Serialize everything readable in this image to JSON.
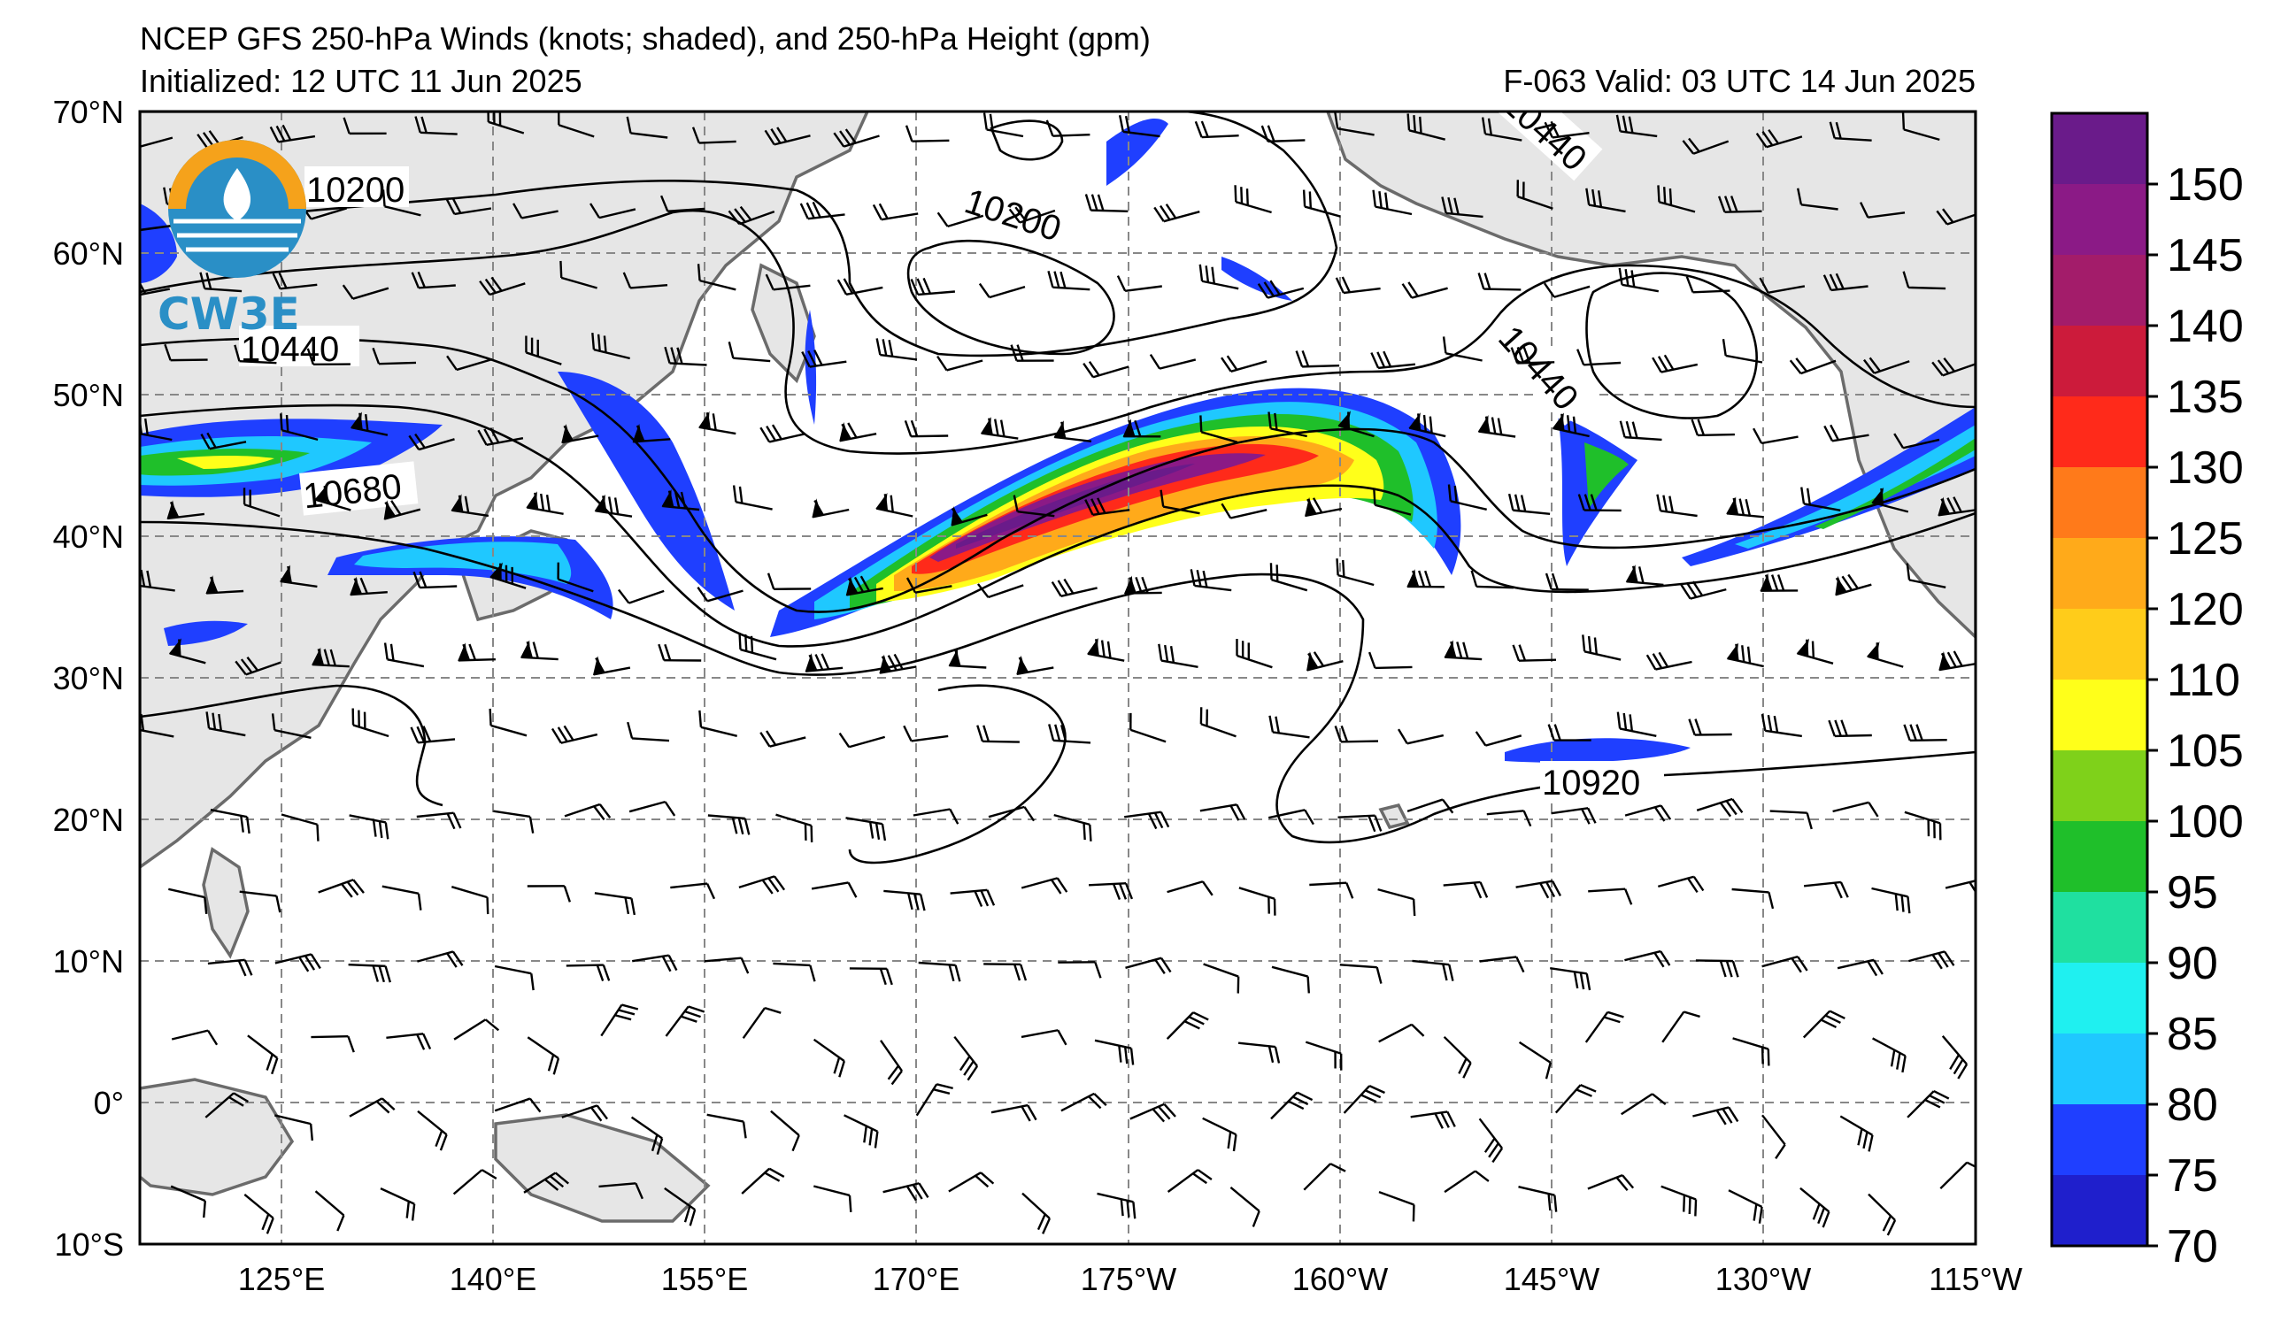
{
  "header": {
    "title": "NCEP GFS 250-hPa Winds (knots; shaded), and 250-hPa Height (gpm)",
    "initialized": "Initialized: 12 UTC 11 Jun 2025",
    "valid": "F-063  Valid: 03 UTC 14 Jun 2025"
  },
  "logo": {
    "text": "CW3E"
  },
  "map": {
    "lat_labels": [
      "70°N",
      "60°N",
      "50°N",
      "40°N",
      "30°N",
      "20°N",
      "10°N",
      "0°",
      "10°S"
    ],
    "lon_labels": [
      "125°E",
      "140°E",
      "155°E",
      "170°E",
      "175°W",
      "160°W",
      "145°W",
      "130°W",
      "115°W"
    ],
    "contour_labels": [
      "10200",
      "10200",
      "10440",
      "10440",
      "10440",
      "10680",
      "10920"
    ]
  },
  "colorbar": {
    "labels": [
      "150",
      "145",
      "140",
      "135",
      "130",
      "125",
      "120",
      "110",
      "105",
      "100",
      "95",
      "90",
      "85",
      "80",
      "75",
      "70"
    ],
    "colors_top_to_bottom": [
      "#6a1b8a",
      "#8b1a86",
      "#a31c6a",
      "#cc1b3b",
      "#ff2a1a",
      "#ff7a1a",
      "#ffaa1a",
      "#ffcc1a",
      "#ffff1a",
      "#7fd11a",
      "#1fbf2a",
      "#1fe0a0",
      "#1ff0f0",
      "#1fc8ff",
      "#1f3fff",
      "#1f1fcc"
    ],
    "units": "knots"
  }
}
